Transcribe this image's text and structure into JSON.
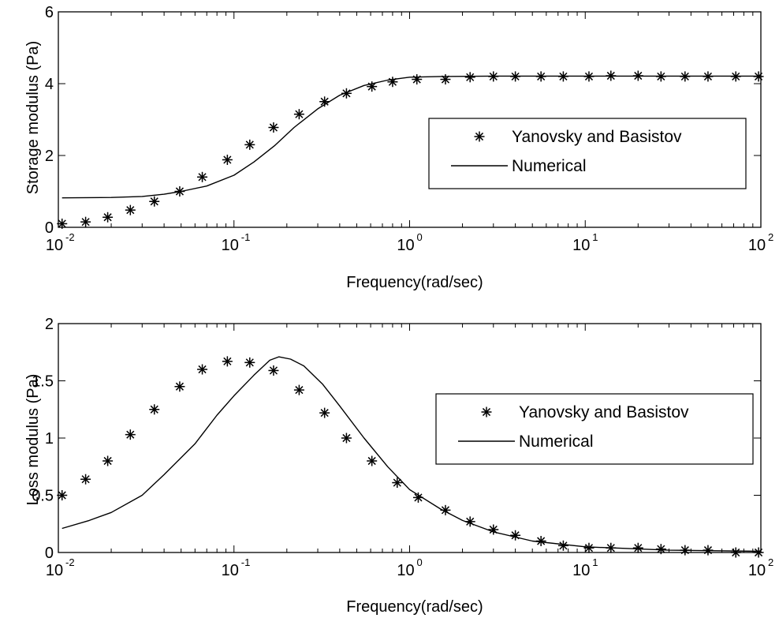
{
  "chart_data": [
    {
      "type": "line",
      "xlabel": "Frequency(rad/sec)",
      "ylabel": "Storage  modulus (Pa)",
      "xscale": "log",
      "xlim": [
        0.01,
        100
      ],
      "ylim": [
        0,
        6
      ],
      "xticks": [
        {
          "base": "10",
          "exp": "-2"
        },
        {
          "base": "10",
          "exp": "-1"
        },
        {
          "base": "10",
          "exp": "0"
        },
        {
          "base": "10",
          "exp": "1"
        },
        {
          "base": "10",
          "exp": "2"
        }
      ],
      "yticks": [
        "0",
        "2",
        "4",
        "6"
      ],
      "legend_position": "right",
      "series": [
        {
          "name": "Yanovsky and Basistov",
          "style": "markers-asterisk",
          "color": "#000000",
          "points": [
            [
              0.0105,
              0.1
            ],
            [
              0.0143,
              0.15
            ],
            [
              0.0191,
              0.28
            ],
            [
              0.0257,
              0.48
            ],
            [
              0.0352,
              0.72
            ],
            [
              0.0491,
              1.0
            ],
            [
              0.066,
              1.4
            ],
            [
              0.0917,
              1.88
            ],
            [
              0.123,
              2.3
            ],
            [
              0.168,
              2.78
            ],
            [
              0.235,
              3.15
            ],
            [
              0.328,
              3.5
            ],
            [
              0.437,
              3.73
            ],
            [
              0.61,
              3.92
            ],
            [
              0.8,
              4.05
            ],
            [
              1.1,
              4.12
            ],
            [
              1.6,
              4.12
            ],
            [
              2.21,
              4.18
            ],
            [
              3.0,
              4.2
            ],
            [
              4.0,
              4.2
            ],
            [
              5.6,
              4.2
            ],
            [
              7.5,
              4.2
            ],
            [
              10.5,
              4.2
            ],
            [
              14.0,
              4.22
            ],
            [
              20.0,
              4.22
            ],
            [
              27.0,
              4.2
            ],
            [
              37.0,
              4.2
            ],
            [
              50.0,
              4.2
            ],
            [
              72.0,
              4.2
            ],
            [
              97.0,
              4.2
            ]
          ]
        },
        {
          "name": "Numerical",
          "style": "solid-line",
          "color": "#000000",
          "points": [
            [
              0.0105,
              0.82
            ],
            [
              0.02,
              0.83
            ],
            [
              0.03,
              0.86
            ],
            [
              0.04,
              0.92
            ],
            [
              0.05,
              1.0
            ],
            [
              0.07,
              1.15
            ],
            [
              0.1,
              1.45
            ],
            [
              0.13,
              1.82
            ],
            [
              0.17,
              2.27
            ],
            [
              0.22,
              2.78
            ],
            [
              0.3,
              3.3
            ],
            [
              0.4,
              3.68
            ],
            [
              0.55,
              3.95
            ],
            [
              0.75,
              4.1
            ],
            [
              1.0,
              4.18
            ],
            [
              1.5,
              4.2
            ],
            [
              3.0,
              4.21
            ],
            [
              10.0,
              4.21
            ],
            [
              100.0,
              4.21
            ]
          ]
        }
      ]
    },
    {
      "type": "line",
      "xlabel": "Frequency(rad/sec)",
      "ylabel": "Loss  modulus (Pa)",
      "xscale": "log",
      "xlim": [
        0.01,
        100
      ],
      "ylim": [
        0,
        2
      ],
      "xticks": [
        {
          "base": "10",
          "exp": "-2"
        },
        {
          "base": "10",
          "exp": "-1"
        },
        {
          "base": "10",
          "exp": "0"
        },
        {
          "base": "10",
          "exp": "1"
        },
        {
          "base": "10",
          "exp": "2"
        }
      ],
      "yticks": [
        "0",
        "0.5",
        "1",
        "1.5",
        "2"
      ],
      "legend_position": "right",
      "series": [
        {
          "name": "Yanovsky and Basistov",
          "style": "markers-asterisk",
          "color": "#000000",
          "points": [
            [
              0.0105,
              0.5
            ],
            [
              0.0143,
              0.64
            ],
            [
              0.0191,
              0.8
            ],
            [
              0.0257,
              1.03
            ],
            [
              0.0352,
              1.25
            ],
            [
              0.0491,
              1.45
            ],
            [
              0.066,
              1.6
            ],
            [
              0.0917,
              1.67
            ],
            [
              0.123,
              1.66
            ],
            [
              0.168,
              1.59
            ],
            [
              0.235,
              1.42
            ],
            [
              0.328,
              1.22
            ],
            [
              0.437,
              1.0
            ],
            [
              0.61,
              0.8
            ],
            [
              0.85,
              0.61
            ],
            [
              1.12,
              0.48
            ],
            [
              1.6,
              0.37
            ],
            [
              2.21,
              0.27
            ],
            [
              3.0,
              0.2
            ],
            [
              4.0,
              0.15
            ],
            [
              5.6,
              0.1
            ],
            [
              7.5,
              0.06
            ],
            [
              10.5,
              0.04
            ],
            [
              14.0,
              0.04
            ],
            [
              20.0,
              0.04
            ],
            [
              27.0,
              0.03
            ],
            [
              37.0,
              0.02
            ],
            [
              50.0,
              0.02
            ],
            [
              72.0,
              0.0
            ],
            [
              97.0,
              0.0
            ]
          ]
        },
        {
          "name": "Numerical",
          "style": "solid-line",
          "color": "#000000",
          "points": [
            [
              0.0105,
              0.21
            ],
            [
              0.015,
              0.28
            ],
            [
              0.02,
              0.35
            ],
            [
              0.03,
              0.5
            ],
            [
              0.04,
              0.68
            ],
            [
              0.06,
              0.95
            ],
            [
              0.08,
              1.2
            ],
            [
              0.1,
              1.37
            ],
            [
              0.13,
              1.55
            ],
            [
              0.16,
              1.68
            ],
            [
              0.18,
              1.71
            ],
            [
              0.21,
              1.69
            ],
            [
              0.25,
              1.63
            ],
            [
              0.32,
              1.47
            ],
            [
              0.4,
              1.28
            ],
            [
              0.55,
              1.0
            ],
            [
              0.75,
              0.75
            ],
            [
              1.0,
              0.55
            ],
            [
              1.5,
              0.38
            ],
            [
              2.0,
              0.28
            ],
            [
              3.0,
              0.18
            ],
            [
              5.0,
              0.1
            ],
            [
              10.0,
              0.05
            ],
            [
              30.0,
              0.02
            ],
            [
              100.0,
              0.01
            ]
          ]
        }
      ]
    }
  ]
}
